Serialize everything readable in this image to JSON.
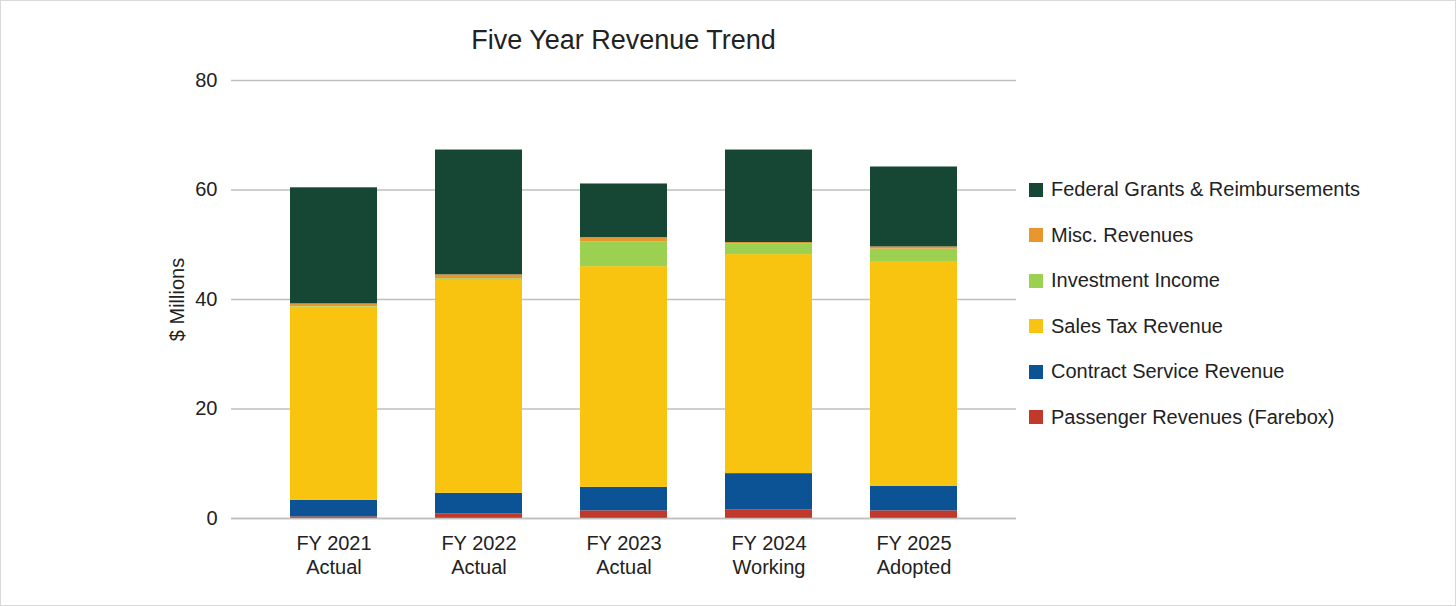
{
  "chart_data": {
    "type": "bar",
    "title": "Five Year Revenue Trend",
    "y_label": "$ Millions",
    "categories": [
      "FY 2021\nActual",
      "FY 2022\nActual",
      "FY 2023\nActual",
      "FY 2024\nWorking",
      "FY 2025\nAdopted"
    ],
    "series": [
      {
        "name": "Passenger Revenues (Farebox)",
        "color": "#c0392b",
        "values": [
          0.3,
          0.8,
          1.4,
          1.6,
          1.4
        ]
      },
      {
        "name": "Contract Service Revenue",
        "color": "#0b5394",
        "values": [
          3.0,
          3.8,
          4.3,
          6.6,
          4.5
        ]
      },
      {
        "name": "Sales Tax Revenue",
        "color": "#f9c40f",
        "values": [
          35.3,
          38.9,
          40.3,
          40.0,
          40.9
        ]
      },
      {
        "name": "Investment Income",
        "color": "#9bd050",
        "values": [
          0.1,
          0.3,
          4.5,
          2.0,
          2.4
        ]
      },
      {
        "name": "Misc. Revenues",
        "color": "#e8962e",
        "values": [
          0.5,
          0.7,
          0.8,
          0.2,
          0.4
        ]
      },
      {
        "name": "Federal Grants & Reimbursements",
        "color": "#154734",
        "values": [
          21.2,
          22.8,
          9.8,
          16.9,
          14.6
        ]
      }
    ],
    "stacked": true,
    "ylim": [
      0,
      80
    ],
    "yticks": [
      0,
      20,
      40,
      60,
      80
    ],
    "grid": true,
    "legend": "right"
  }
}
